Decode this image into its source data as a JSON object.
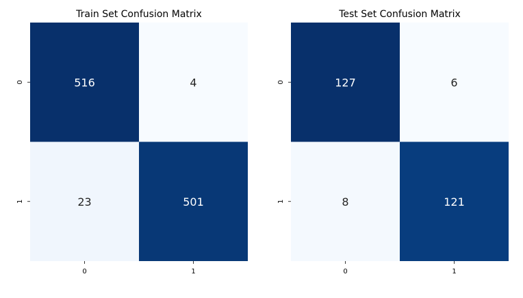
{
  "chart_data": [
    {
      "type": "heatmap",
      "title": "Train Set Confusion Matrix",
      "x_tick_labels": [
        "0",
        "1"
      ],
      "y_tick_labels": [
        "0",
        "1"
      ],
      "values": [
        [
          516,
          4
        ],
        [
          23,
          501
        ]
      ],
      "colormap": "Blues",
      "colorbar": false
    },
    {
      "type": "heatmap",
      "title": "Test Set Confusion Matrix",
      "x_tick_labels": [
        "0",
        "1"
      ],
      "y_tick_labels": [
        "0",
        "1"
      ],
      "values": [
        [
          127,
          6
        ],
        [
          8,
          121
        ]
      ],
      "colormap": "Blues",
      "colorbar": false
    }
  ]
}
